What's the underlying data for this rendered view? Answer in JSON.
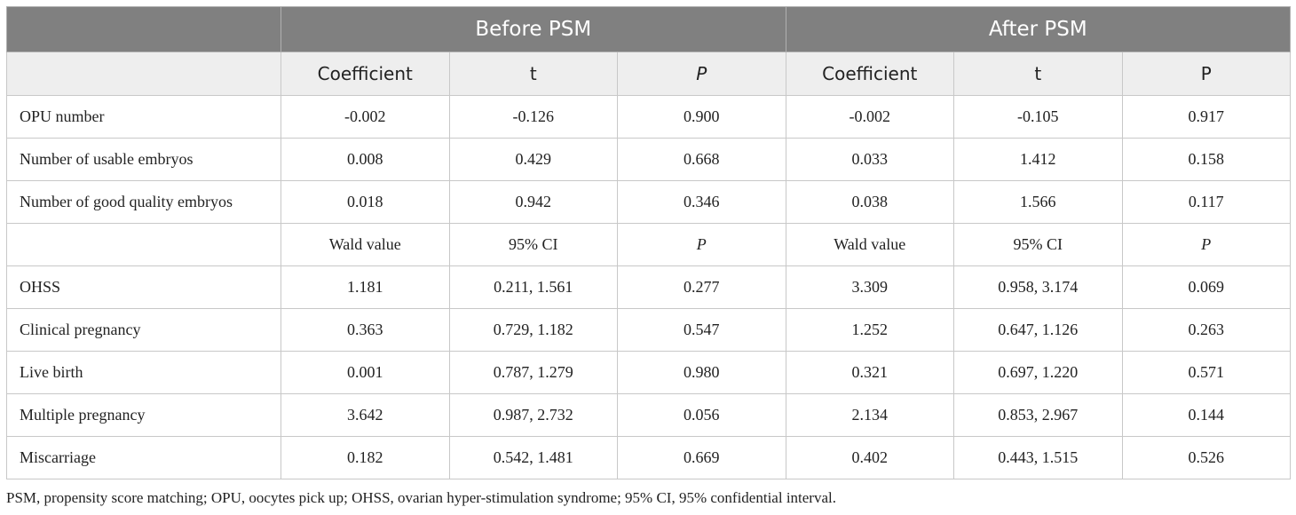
{
  "header": {
    "before": "Before PSM",
    "after": "After PSM",
    "sub": [
      "Coefficient",
      "t",
      "P",
      "Coefficient",
      "t",
      "P"
    ]
  },
  "rows": [
    {
      "label": "OPU number",
      "cells": [
        "-0.002",
        "-0.126",
        "0.900",
        "-0.002",
        "-0.105",
        "0.917"
      ]
    },
    {
      "label": "Number of usable embryos",
      "cells": [
        "0.008",
        "0.429",
        "0.668",
        "0.033",
        "1.412",
        "0.158"
      ]
    },
    {
      "label": "Number of good quality embryos",
      "cells": [
        "0.018",
        "0.942",
        "0.346",
        "0.038",
        "1.566",
        "0.117"
      ]
    },
    {
      "label": "",
      "cells": [
        "Wald value",
        "95% CI",
        "P",
        "Wald value",
        "95% CI",
        "P"
      ]
    },
    {
      "label": "OHSS",
      "cells": [
        "1.181",
        "0.211, 1.561",
        "0.277",
        "3.309",
        "0.958, 3.174",
        "0.069"
      ]
    },
    {
      "label": "Clinical pregnancy",
      "cells": [
        "0.363",
        "0.729, 1.182",
        "0.547",
        "1.252",
        "0.647, 1.126",
        "0.263"
      ]
    },
    {
      "label": "Live birth",
      "cells": [
        "0.001",
        "0.787, 1.279",
        "0.980",
        "0.321",
        "0.697, 1.220",
        "0.571"
      ]
    },
    {
      "label": "Multiple pregnancy",
      "cells": [
        "3.642",
        "0.987, 2.732",
        "0.056",
        "2.134",
        "0.853, 2.967",
        "0.144"
      ]
    },
    {
      "label": "Miscarriage",
      "cells": [
        "0.182",
        "0.542, 1.481",
        "0.669",
        "0.402",
        "0.443, 1.515",
        "0.526"
      ]
    }
  ],
  "footnote": "PSM, propensity score matching; OPU, oocytes pick up; OHSS, ovarian hyper-stimulation syndrome; 95% CI, 95% confidential interval."
}
